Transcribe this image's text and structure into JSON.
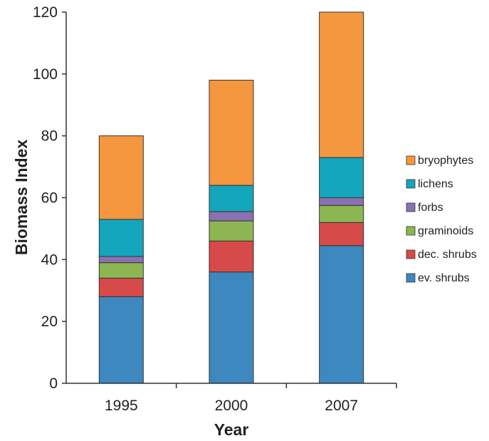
{
  "chart_data": {
    "type": "bar",
    "stacked": true,
    "title": "",
    "xlabel": "Year",
    "ylabel": "Biomass Index",
    "categories": [
      "1995",
      "2000",
      "2007"
    ],
    "ylim": [
      0,
      120
    ],
    "yticks": [
      "0",
      "20",
      "40",
      "60",
      "80",
      "100",
      "120"
    ],
    "grid": false,
    "legend_position": "right",
    "series": [
      {
        "name": "ev. shrubs",
        "color": "#3d88be",
        "values": [
          28,
          36,
          44.5
        ]
      },
      {
        "name": "dec. shrubs",
        "color": "#d74a4a",
        "values": [
          6,
          10,
          7.5
        ]
      },
      {
        "name": "graminoids",
        "color": "#8db653",
        "values": [
          5,
          6.5,
          5.5
        ]
      },
      {
        "name": "forbs",
        "color": "#8a72b2",
        "values": [
          2,
          3,
          2.5
        ]
      },
      {
        "name": "lichens",
        "color": "#14a6bc",
        "values": [
          12,
          8.5,
          13
        ]
      },
      {
        "name": "bryophytes",
        "color": "#f5973f",
        "values": [
          27,
          34,
          47
        ]
      }
    ]
  }
}
